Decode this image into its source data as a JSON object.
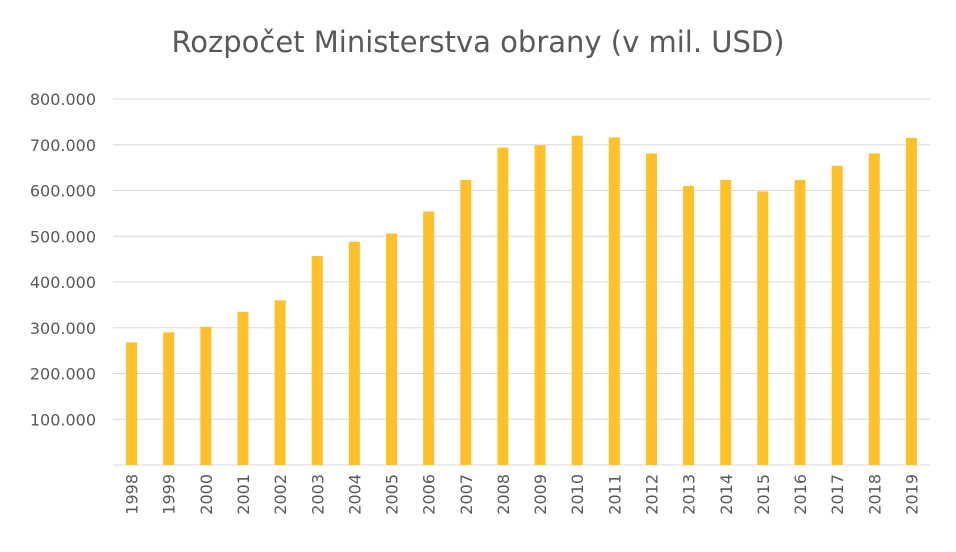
{
  "chart_data": {
    "type": "bar",
    "title": "Rozpočet Ministerstva obrany (v mil. USD)",
    "xlabel": "",
    "ylabel": "",
    "ylim": [
      0,
      800000
    ],
    "yticks": [
      100000,
      200000,
      300000,
      400000,
      500000,
      600000,
      700000,
      800000
    ],
    "ytick_labels": [
      "100.000",
      "200.000",
      "300.000",
      "400.000",
      "500.000",
      "600.000",
      "700.000",
      "800.000"
    ],
    "categories": [
      "1998",
      "1999",
      "2000",
      "2001",
      "2002",
      "2003",
      "2004",
      "2005",
      "2006",
      "2007",
      "2008",
      "2009",
      "2010",
      "2011",
      "2012",
      "2013",
      "2014",
      "2015",
      "2016",
      "2017",
      "2018",
      "2019"
    ],
    "values": [
      268000,
      290000,
      302000,
      335000,
      360000,
      457000,
      488000,
      506000,
      554000,
      623000,
      694000,
      699000,
      720000,
      716000,
      681000,
      610000,
      623000,
      598000,
      623000,
      654000,
      681000,
      715000
    ],
    "grid": true,
    "legend": "none",
    "bar_color": "#FFC12B",
    "gridline_color": "#D9D9D9",
    "text_color": "#595959"
  }
}
